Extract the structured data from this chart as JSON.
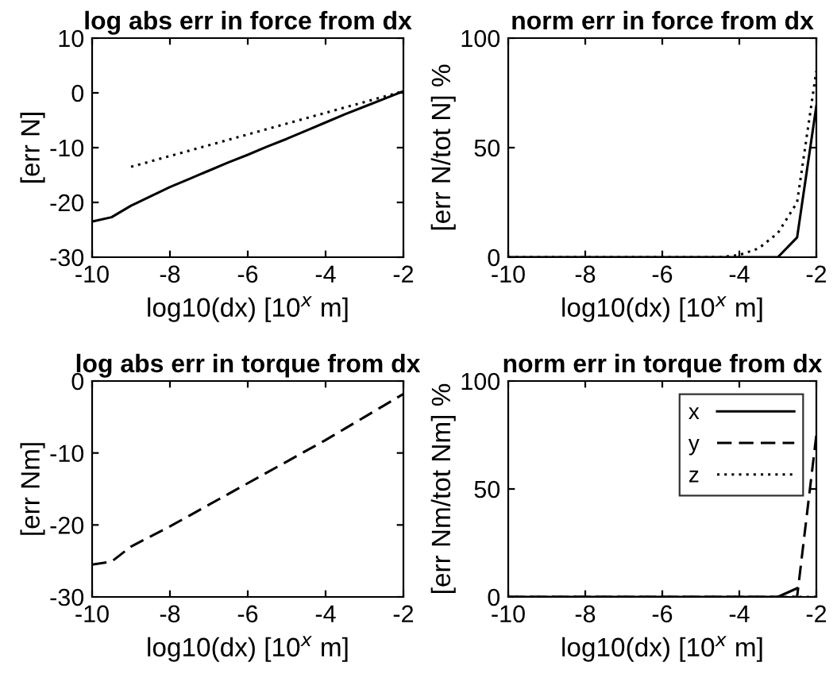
{
  "chart_data": [
    {
      "type": "line",
      "title": "log abs err in force from dx",
      "xlabel": "log10(dx) [10$^{x}$ m]",
      "ylabel": "[err N]",
      "x": [
        -10,
        -9.5,
        -9,
        -8.5,
        -8,
        -7.5,
        -7,
        -6.5,
        -6,
        -5.5,
        -5,
        -4.5,
        -4,
        -3.5,
        -3,
        -2.5,
        -2
      ],
      "series": [
        {
          "color": "#000000",
          "line_style": "solid",
          "values": [
            -23.5,
            -22.7,
            -20.6,
            -18.9,
            -17.2,
            -15.7,
            -14.2,
            -12.7,
            -11.3,
            -9.8,
            -8.4,
            -6.9,
            -5.4,
            -3.9,
            -2.5,
            -1.1,
            0.3
          ]
        },
        {
          "color": "#000000",
          "line_style": "dotted",
          "x": [
            -9,
            -2
          ],
          "values": [
            -13.5,
            0.3
          ]
        }
      ],
      "xlim": [
        -10,
        -2
      ],
      "ylim": [
        -30,
        10
      ],
      "xticks": [
        -10,
        -8,
        -6,
        -4,
        -2
      ],
      "yticks": [
        -30,
        -20,
        -10,
        0,
        10
      ],
      "grid": false,
      "legend": false
    },
    {
      "type": "line",
      "title": "norm err in force from dx",
      "xlabel": "log10(dx) [10$^{x}$ m]",
      "ylabel": "[err N/tot N] %",
      "x": [
        -10,
        -9.5,
        -9,
        -8.5,
        -8,
        -7.5,
        -7,
        -6.5,
        -6,
        -5.5,
        -5,
        -4.5,
        -4,
        -3.5,
        -3,
        -2.5,
        -2
      ],
      "series": [
        {
          "color": "#000000",
          "line_style": "solid",
          "values": [
            0,
            0,
            0,
            0,
            0,
            0,
            0,
            0,
            0,
            0,
            0,
            0,
            0,
            0,
            0,
            9,
            69
          ]
        },
        {
          "color": "#000000",
          "line_style": "dotted",
          "values": [
            0,
            0,
            0,
            0,
            0,
            0,
            0,
            0,
            0,
            0,
            0,
            0,
            1,
            4,
            11,
            25,
            85
          ]
        }
      ],
      "xlim": [
        -10,
        -2
      ],
      "ylim": [
        0,
        100
      ],
      "xticks": [
        -10,
        -8,
        -6,
        -4,
        -2
      ],
      "yticks": [
        0,
        50,
        100
      ],
      "grid": false,
      "legend": false
    },
    {
      "type": "line",
      "title": "log abs err in torque from dx",
      "xlabel": "log10(dx) [10$^{x}$ m]",
      "ylabel": "[err Nm]",
      "x": [
        -10,
        -9.5,
        -9,
        -8.5,
        -8,
        -7.5,
        -7,
        -6.5,
        -6,
        -5.5,
        -5,
        -4.5,
        -4,
        -3.5,
        -3,
        -2.5,
        -2
      ],
      "series": [
        {
          "color": "#000000",
          "line_style": "dashed",
          "values": [
            -25.5,
            -25.1,
            -23,
            -21.6,
            -20.2,
            -18.7,
            -17.2,
            -15.7,
            -14.2,
            -12.7,
            -11.2,
            -9.7,
            -8.2,
            -6.6,
            -5,
            -3.4,
            -1.8
          ]
        }
      ],
      "xlim": [
        -10,
        -2
      ],
      "ylim": [
        -30,
        0
      ],
      "xticks": [
        -10,
        -8,
        -6,
        -4,
        -2
      ],
      "yticks": [
        -30,
        -20,
        -10,
        0
      ],
      "grid": false,
      "legend": false
    },
    {
      "type": "line",
      "title": "norm err in torque from dx",
      "xlabel": "log10(dx) [10$^{x}$ m]",
      "ylabel": "[err Nm/tot Nm] %",
      "x": [
        -10,
        -9.5,
        -9,
        -8.5,
        -8,
        -7.5,
        -7,
        -6.5,
        -6,
        -5.5,
        -5,
        -4.5,
        -4,
        -3.5,
        -3,
        -2.5,
        -2
      ],
      "series": [
        {
          "name": "x",
          "color": "#000000",
          "line_style": "solid",
          "values": [
            0,
            0,
            0,
            0,
            0,
            0,
            0,
            0,
            0,
            0,
            0,
            0,
            0,
            0,
            0,
            4,
            null
          ]
        },
        {
          "name": "y",
          "color": "#000000",
          "line_style": "dashed",
          "values": [
            0,
            0,
            0,
            0,
            0,
            0,
            0,
            0,
            0,
            0,
            0,
            0,
            0,
            0,
            0,
            0,
            75
          ]
        },
        {
          "name": "z",
          "color": "#000000",
          "line_style": "dotted",
          "values": [
            0,
            0,
            0,
            0,
            0,
            0,
            0,
            0,
            0,
            0,
            0,
            0,
            0,
            0,
            0,
            0,
            0
          ]
        }
      ],
      "xlim": [
        -10,
        -2
      ],
      "ylim": [
        0,
        100
      ],
      "xticks": [
        -10,
        -8,
        -6,
        -4,
        -2
      ],
      "yticks": [
        0,
        50,
        100
      ],
      "grid": false,
      "legend": "top right"
    }
  ]
}
